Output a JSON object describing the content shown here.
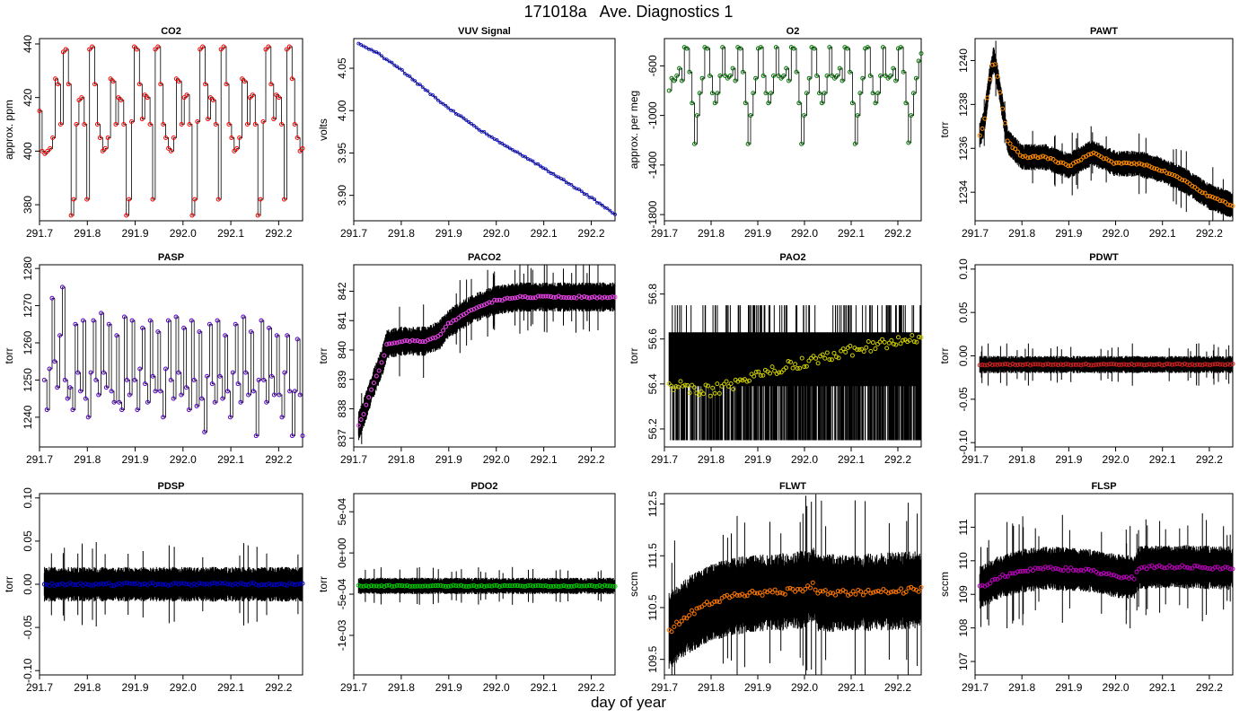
{
  "figure": {
    "title": "171018a   Ave. Diagnostics 1",
    "xlabel": "day of year"
  },
  "chart_data": [
    {
      "type": "line",
      "title": "CO2",
      "ylabel": "approx. ppm",
      "xlim": [
        291.7,
        292.25
      ],
      "ylim": [
        374,
        442
      ],
      "xticks": [
        "291.7",
        "291.8",
        "291.9",
        "292.0",
        "292.1",
        "292.2"
      ],
      "yticks": [
        "380",
        "400",
        "420",
        "440"
      ],
      "point_color": "#ff0000",
      "style": "steps",
      "series": [
        {
          "name": "",
          "x_start": 291.7,
          "x_end": 292.25,
          "values": [
            415,
            400,
            399,
            400,
            401,
            405,
            427,
            425,
            410,
            437,
            438,
            425,
            376,
            382,
            410,
            419,
            420,
            410,
            382,
            438,
            439,
            425,
            410,
            405,
            400,
            401,
            405,
            427,
            426,
            410,
            420,
            419,
            410,
            376,
            382,
            411,
            439,
            438,
            425,
            412,
            421,
            420,
            410,
            382,
            438,
            439,
            425,
            410,
            405,
            401,
            400,
            405,
            427,
            426,
            410,
            420,
            421,
            410,
            376,
            382,
            411,
            438,
            439,
            425,
            412,
            420,
            419,
            410,
            382,
            438,
            439,
            425,
            410,
            405,
            400,
            401,
            405,
            427,
            426,
            410,
            420,
            421,
            410,
            376,
            382,
            411,
            438,
            439,
            425,
            412,
            421,
            420,
            410,
            382,
            438,
            439,
            427,
            410,
            405,
            400,
            401
          ]
        }
      ]
    },
    {
      "type": "line",
      "title": "VUV Signal",
      "ylabel": "volts",
      "xlim": [
        291.7,
        292.25
      ],
      "ylim": [
        3.87,
        4.085
      ],
      "xticks": [
        "291.7",
        "291.8",
        "291.9",
        "292.0",
        "292.1",
        "292.2"
      ],
      "yticks": [
        "3.90",
        "3.95",
        "4.00",
        "4.05"
      ],
      "point_color": "#0000cc",
      "style": "curve",
      "series": [
        {
          "name": "",
          "x": [
            291.71,
            291.75,
            291.8,
            291.85,
            291.9,
            291.95,
            292.0,
            292.05,
            292.1,
            292.15,
            292.2,
            292.25
          ],
          "values": [
            4.08,
            4.068,
            4.048,
            4.025,
            4.003,
            3.983,
            3.965,
            3.949,
            3.932,
            3.915,
            3.897,
            3.878
          ]
        }
      ]
    },
    {
      "type": "line",
      "title": "O2",
      "ylabel": "approx. per meg",
      "xlim": [
        291.7,
        292.25
      ],
      "ylim": [
        -1850,
        -380
      ],
      "xticks": [
        "291.7",
        "291.8",
        "291.9",
        "292.0",
        "292.1",
        "292.2"
      ],
      "yticks": [
        "-1800",
        "-1400",
        "-1000",
        "-600"
      ],
      "point_color": "#007700",
      "style": "steps",
      "series": [
        {
          "name": "",
          "x_start": 291.71,
          "x_end": 292.25,
          "values": [
            -800,
            -700,
            -720,
            -680,
            -620,
            -720,
            -450,
            -460,
            -650,
            -900,
            -1230,
            -1000,
            -820,
            -700,
            -450,
            -460,
            -680,
            -820,
            -900,
            -820,
            -680,
            -450,
            -680,
            -700,
            -680,
            -620,
            -720,
            -450,
            -460,
            -650,
            -900,
            -1230,
            -1000,
            -820,
            -700,
            -460,
            -450,
            -680,
            -820,
            -900,
            -820,
            -680,
            -450,
            -680,
            -700,
            -680,
            -620,
            -720,
            -450,
            -460,
            -650,
            -900,
            -1230,
            -1000,
            -820,
            -700,
            -450,
            -460,
            -680,
            -820,
            -900,
            -820,
            -680,
            -450,
            -680,
            -700,
            -680,
            -620,
            -720,
            -450,
            -460,
            -650,
            -900,
            -1230,
            -1000,
            -820,
            -700,
            -460,
            -450,
            -680,
            -820,
            -900,
            -820,
            -680,
            -450,
            -680,
            -700,
            -680,
            -620,
            -720,
            -460,
            -450,
            -650,
            -900,
            -1220,
            -1000,
            -820,
            -700,
            -560,
            -500
          ]
        }
      ]
    },
    {
      "type": "line",
      "title": "PAWT",
      "ylabel": "torr",
      "xlim": [
        291.7,
        292.25
      ],
      "ylim": [
        1232.7,
        1241
      ],
      "xticks": [
        "291.7",
        "291.8",
        "291.9",
        "292.0",
        "292.1",
        "292.2"
      ],
      "yticks": [
        "1234",
        "1236",
        "1238",
        "1240"
      ],
      "point_color": "#ff8c00",
      "style": "noisy",
      "noise_amplitude": 0.6,
      "series": [
        {
          "name": "",
          "x": [
            291.71,
            291.72,
            291.73,
            291.74,
            291.75,
            291.77,
            291.8,
            291.85,
            291.9,
            291.95,
            292.0,
            292.05,
            292.1,
            292.15,
            292.2,
            292.25
          ],
          "values": [
            1236.6,
            1237.2,
            1239,
            1240.1,
            1239,
            1236.3,
            1235.6,
            1235.6,
            1235.2,
            1235.8,
            1235.3,
            1235.3,
            1235,
            1234.5,
            1233.8,
            1233.4
          ]
        }
      ]
    },
    {
      "type": "line",
      "title": "PASP",
      "ylabel": "torr",
      "xlim": [
        291.7,
        292.25
      ],
      "ylim": [
        1232,
        1281
      ],
      "xticks": [
        "291.7",
        "291.8",
        "291.9",
        "292.0",
        "292.1",
        "292.2"
      ],
      "yticks": [
        "1240",
        "1250",
        "1260",
        "1270",
        "1280"
      ],
      "point_color": "#5500cc",
      "style": "steps",
      "series": [
        {
          "name": "",
          "x_start": 291.71,
          "x_end": 292.25,
          "values": [
            1250,
            1242,
            1253,
            1272,
            1255,
            1248,
            1262,
            1275,
            1250,
            1245,
            1248,
            1242,
            1265,
            1252,
            1247,
            1266,
            1245,
            1240,
            1252,
            1266,
            1250,
            1246,
            1268,
            1252,
            1248,
            1265,
            1247,
            1244,
            1262,
            1244,
            1242,
            1267,
            1250,
            1246,
            1266,
            1250,
            1242,
            1253,
            1264,
            1249,
            1244,
            1266,
            1251,
            1247,
            1263,
            1247,
            1240,
            1253,
            1266,
            1250,
            1245,
            1267,
            1252,
            1246,
            1264,
            1248,
            1242,
            1266,
            1250,
            1243,
            1263,
            1245,
            1236,
            1251,
            1265,
            1249,
            1244,
            1266,
            1251,
            1245,
            1262,
            1247,
            1240,
            1252,
            1265,
            1249,
            1244,
            1267,
            1252,
            1246,
            1263,
            1247,
            1235,
            1250,
            1266,
            1250,
            1244,
            1264,
            1251,
            1246,
            1262,
            1246,
            1240,
            1252,
            1262,
            1247,
            1235,
            1247,
            1261,
            1246,
            1235
          ]
        }
      ]
    },
    {
      "type": "line",
      "title": "PACO2",
      "ylabel": "torr",
      "xlim": [
        291.7,
        292.25
      ],
      "ylim": [
        836.7,
        842.9
      ],
      "xticks": [
        "291.7",
        "291.8",
        "291.9",
        "292.0",
        "292.1",
        "292.2"
      ],
      "yticks": [
        "837",
        "838",
        "839",
        "840",
        "841",
        "842"
      ],
      "point_color": "#ee44ee",
      "style": "noisy",
      "noise_amplitude": 0.5,
      "series": [
        {
          "name": "",
          "x": [
            291.71,
            291.72,
            291.74,
            291.75,
            291.76,
            291.77,
            291.8,
            291.85,
            291.88,
            291.9,
            291.95,
            292.0,
            292.05,
            292.1,
            292.15,
            292.2,
            292.25
          ],
          "values": [
            837.4,
            837.8,
            838.8,
            839.2,
            839.6,
            840.2,
            840.3,
            840.3,
            840.5,
            840.9,
            841.4,
            841.7,
            841.8,
            841.8,
            841.8,
            841.8,
            841.8
          ]
        }
      ]
    },
    {
      "type": "line",
      "title": "PAO2",
      "ylabel": "torr",
      "xlim": [
        291.7,
        292.25
      ],
      "ylim": [
        56.12,
        56.93
      ],
      "xticks": [
        "291.7",
        "291.8",
        "291.9",
        "292.0",
        "292.1",
        "292.2"
      ],
      "yticks": [
        "56.2",
        "56.4",
        "56.6",
        "56.8"
      ],
      "point_color": "#cccc00",
      "style": "quantized",
      "levels": [
        56.15,
        56.39,
        56.63,
        56.75
      ],
      "series": [
        {
          "name": "",
          "x": [
            291.71,
            291.75,
            291.8,
            291.85,
            291.9,
            291.95,
            292.0,
            292.05,
            292.1,
            292.15,
            292.2,
            292.25
          ],
          "values": [
            56.4,
            56.38,
            56.37,
            56.4,
            56.46,
            56.47,
            56.5,
            56.52,
            56.55,
            56.57,
            56.59,
            56.6
          ]
        }
      ]
    },
    {
      "type": "line",
      "title": "PDWT",
      "ylabel": "torr",
      "xlim": [
        291.7,
        292.25
      ],
      "ylim": [
        -0.105,
        0.105
      ],
      "xticks": [
        "291.7",
        "291.8",
        "291.9",
        "292.0",
        "292.1",
        "292.2"
      ],
      "yticks": [
        "-0.10",
        "-0.05",
        "0.00",
        "0.05",
        "0.10"
      ],
      "point_color": "#cc2222",
      "style": "noisy",
      "noise_amplitude": 0.01,
      "series": [
        {
          "name": "",
          "x": [
            291.71,
            292.25
          ],
          "values": [
            -0.01,
            -0.01
          ]
        }
      ]
    },
    {
      "type": "line",
      "title": "PDSP",
      "ylabel": "torr",
      "xlim": [
        291.7,
        292.25
      ],
      "ylim": [
        -0.105,
        0.105
      ],
      "xticks": [
        "291.7",
        "291.8",
        "291.9",
        "292.0",
        "292.1",
        "292.2"
      ],
      "yticks": [
        "-0.10",
        "-0.05",
        "0.00",
        "0.05",
        "0.10"
      ],
      "point_color": "#0000cc",
      "style": "noisy",
      "noise_amplitude": 0.02,
      "series": [
        {
          "name": "",
          "x": [
            291.71,
            292.25
          ],
          "values": [
            0.0,
            0.0
          ]
        }
      ]
    },
    {
      "type": "line",
      "title": "PDO2",
      "ylabel": "torr",
      "xlim": [
        291.7,
        292.25
      ],
      "ylim": [
        -0.00148,
        0.00072
      ],
      "xticks": [
        "291.7",
        "291.8",
        "291.9",
        "292.0",
        "292.1",
        "292.2"
      ],
      "yticks": [
        "-1e-03",
        "-5e-04",
        "0e+00",
        "5e-04"
      ],
      "point_color": "#00cc00",
      "style": "noisy",
      "noise_amplitude": 0.0001,
      "series": [
        {
          "name": "",
          "x": [
            291.71,
            292.25
          ],
          "values": [
            -0.0004,
            -0.0004
          ]
        }
      ]
    },
    {
      "type": "line",
      "title": "FLWT",
      "ylabel": "sccm",
      "xlim": [
        291.7,
        292.25
      ],
      "ylim": [
        109.2,
        112.7
      ],
      "xticks": [
        "291.7",
        "291.8",
        "291.9",
        "292.0",
        "292.1",
        "292.2"
      ],
      "yticks": [
        "109.5",
        "110.5",
        "111.5",
        "112.5"
      ],
      "point_color": "#ff7700",
      "style": "noisy",
      "noise_amplitude": 0.75,
      "series": [
        {
          "name": "",
          "x": [
            291.71,
            291.75,
            291.8,
            291.85,
            291.9,
            291.95,
            292.0,
            292.02,
            292.03,
            292.05,
            292.1,
            292.15,
            292.2,
            292.25
          ],
          "values": [
            110.05,
            110.35,
            110.6,
            110.72,
            110.78,
            110.8,
            110.85,
            110.95,
            110.78,
            110.78,
            110.78,
            110.8,
            110.82,
            110.85
          ]
        }
      ]
    },
    {
      "type": "line",
      "title": "FLSP",
      "ylabel": "sccm",
      "xlim": [
        291.7,
        292.25
      ],
      "ylim": [
        106.6,
        112.0
      ],
      "xticks": [
        "291.7",
        "291.8",
        "291.9",
        "292.0",
        "292.1",
        "292.2"
      ],
      "yticks": [
        "107",
        "108",
        "109",
        "110",
        "111"
      ],
      "point_color": "#bb00bb",
      "style": "noisy",
      "noise_amplitude": 0.65,
      "series": [
        {
          "name": "",
          "x": [
            291.71,
            291.75,
            291.8,
            291.85,
            291.9,
            291.95,
            292.0,
            292.04,
            292.05,
            292.1,
            292.15,
            292.2,
            292.25
          ],
          "values": [
            109.2,
            109.5,
            109.7,
            109.78,
            109.75,
            109.7,
            109.55,
            109.5,
            109.8,
            109.82,
            109.82,
            109.8,
            109.78
          ]
        }
      ]
    }
  ]
}
